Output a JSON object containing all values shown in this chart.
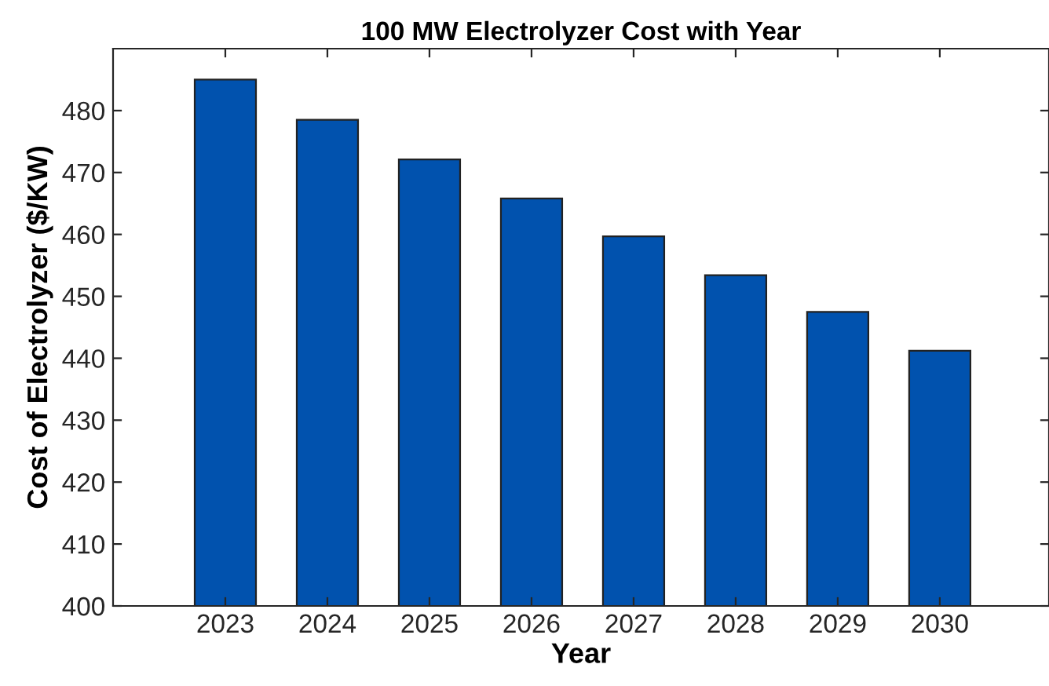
{
  "chart_data": {
    "type": "bar",
    "title": "100 MW Electrolyzer Cost with Year",
    "xlabel": "Year",
    "ylabel": "Cost of Electrolyzer ($/KW)",
    "categories": [
      "2023",
      "2024",
      "2025",
      "2026",
      "2027",
      "2028",
      "2029",
      "2030"
    ],
    "values": [
      485.0,
      478.5,
      472.1,
      465.8,
      459.7,
      453.4,
      447.5,
      441.2
    ],
    "color": "#0152ae",
    "ylim": [
      400,
      490
    ],
    "yticks": [
      400,
      410,
      420,
      430,
      440,
      450,
      460,
      470,
      480
    ],
    "grid": false,
    "legend": false
  }
}
